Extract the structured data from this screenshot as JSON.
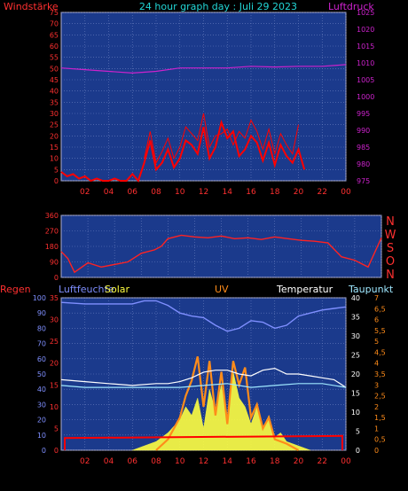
{
  "colors": {
    "background": "#000000",
    "plot_bg": "#1b3a8c",
    "grid": "#6a7fc0",
    "axis_text": "#ff3333",
    "title": "#22d6d6",
    "wind": "#ff0000",
    "pressure": "#cc22cc",
    "direction": "#ff2222",
    "humidity": "#c8e8ff",
    "uv": "#ff8c1a",
    "solar": "#ffff40",
    "temperature": "#ffffff",
    "dewpoint": "#9fe8ff",
    "rain": "#ff0000",
    "solar_line": "#7f8fff"
  },
  "chart_data": [
    {
      "id": "wind_pressure",
      "type": "line",
      "title": "24 hour graph day : Juli 29 2023",
      "ylabel_left": "Windstärke",
      "ylabel_right": "Luftdruck",
      "x_ticks": [
        "02",
        "04",
        "06",
        "08",
        "10",
        "12",
        "14",
        "16",
        "18",
        "20",
        "22",
        "00"
      ],
      "xlim": [
        0,
        24
      ],
      "left_ticks": [
        "0",
        "5",
        "10",
        "15",
        "20",
        "25",
        "30",
        "35",
        "40",
        "45",
        "50",
        "55",
        "60",
        "65",
        "70",
        "75"
      ],
      "ylim_left": [
        0,
        75
      ],
      "right_ticks": [
        "975",
        "980",
        "985",
        "990",
        "995",
        "1000",
        "1005",
        "1010",
        "1015",
        "1020",
        "1025"
      ],
      "ylim_right": [
        975,
        1025
      ],
      "series": [
        {
          "key": "wind",
          "x": [
            0.0,
            0.5,
            1.0,
            1.5,
            2.0,
            2.5,
            3.0,
            3.5,
            4.0,
            4.5,
            5.0,
            5.5,
            6.0,
            6.5,
            7.0,
            7.5,
            8.0,
            8.5,
            9.0,
            9.5,
            10.0,
            10.5,
            11.0,
            11.5,
            12.0,
            12.5,
            13.0,
            13.5,
            14.0,
            14.5,
            15.0,
            15.5,
            16.0,
            16.5,
            17.0,
            17.5,
            18.0,
            18.5,
            19.0,
            19.5,
            20.0,
            20.5
          ],
          "values": [
            4,
            2,
            3,
            1,
            2,
            0,
            1,
            0,
            0,
            1,
            0,
            0,
            3,
            0,
            8,
            18,
            5,
            8,
            14,
            6,
            10,
            18,
            16,
            12,
            24,
            10,
            15,
            26,
            19,
            22,
            11,
            14,
            20,
            17,
            9,
            17,
            7,
            16,
            11,
            8,
            14,
            5
          ]
        },
        {
          "key": "gust",
          "x": [
            7.0,
            7.5,
            8.0,
            8.5,
            9.0,
            9.5,
            10.0,
            10.5,
            11.0,
            11.5,
            12.0,
            12.5,
            13.0,
            13.5,
            14.0,
            14.5,
            15.0,
            15.5,
            16.0,
            16.5,
            17.0,
            17.5,
            18.0,
            18.5,
            19.0,
            19.5,
            20.0
          ],
          "values": [
            10,
            22,
            8,
            13,
            19,
            10,
            15,
            24,
            21,
            18,
            30,
            15,
            20,
            21,
            23,
            16,
            22,
            19,
            27,
            22,
            14,
            23,
            12,
            21,
            16,
            12,
            25
          ]
        },
        {
          "key": "pressure",
          "x": [
            0,
            2,
            4,
            6,
            8,
            10,
            12,
            14,
            16,
            18,
            20,
            22,
            24
          ],
          "values": [
            1008.5,
            1008,
            1007.5,
            1007,
            1007.5,
            1008.5,
            1008.5,
            1008.5,
            1009,
            1008.8,
            1009,
            1009,
            1009.5
          ]
        }
      ]
    },
    {
      "id": "direction",
      "type": "line",
      "x_ticks": [
        "02",
        "04",
        "06",
        "08",
        "10",
        "12",
        "14",
        "16",
        "18",
        "20",
        "22",
        "00"
      ],
      "xlim": [
        0,
        24
      ],
      "left_ticks": [
        "0",
        "90",
        "180",
        "270",
        "360"
      ],
      "ylim": [
        0,
        360
      ],
      "right_ticks": [
        "N",
        "W",
        "S",
        "O",
        "N"
      ],
      "series": [
        {
          "key": "direction",
          "x": [
            0,
            0.5,
            1.0,
            2.0,
            3.0,
            4.0,
            5.0,
            6.0,
            7.0,
            7.5,
            8.0,
            9.0,
            10.0,
            11.0,
            12.0,
            13.0,
            14.0,
            15.0,
            16.0,
            17.0,
            18.0,
            19.0,
            20.0,
            21.0,
            22.0,
            23.0,
            24.0
          ],
          "values": [
            150,
            110,
            30,
            85,
            60,
            75,
            90,
            140,
            160,
            180,
            225,
            245,
            235,
            230,
            240,
            225,
            230,
            220,
            235,
            225,
            215,
            210,
            200,
            120,
            100,
            60,
            230
          ]
        }
      ]
    },
    {
      "id": "solar_uv_temp",
      "type": "line",
      "labels_top": [
        "Regen",
        "Luftfeuchte",
        "Solar",
        "UV",
        "Temperatur",
        "Taupunkt"
      ],
      "x_ticks": [
        "02",
        "04",
        "06",
        "08",
        "10",
        "12",
        "14",
        "16",
        "18",
        "20",
        "22",
        "00"
      ],
      "xlim": [
        0,
        24
      ],
      "humidity_ticks": [
        "0",
        "10",
        "20",
        "30",
        "40",
        "50",
        "60",
        "70",
        "80",
        "90",
        "100"
      ],
      "rain_ticks": [
        "0",
        "5",
        "10",
        "15",
        "20",
        "25",
        "30",
        "35"
      ],
      "temp_ticks": [
        "0",
        "5",
        "10",
        "15",
        "20",
        "25",
        "30",
        "35",
        "40"
      ],
      "uv_ticks": [
        "0",
        "0,5",
        "1",
        "1,5",
        "2",
        "2,5",
        "3",
        "3,5",
        "4",
        "4,5",
        "5",
        "5,5",
        "6",
        "6,5",
        "7"
      ],
      "series": [
        {
          "key": "humidity",
          "x": [
            0,
            2,
            4,
            6,
            7,
            8,
            9,
            10,
            11,
            12,
            13,
            14,
            15,
            16,
            17,
            18,
            19,
            20,
            21,
            22,
            23,
            24
          ],
          "values": [
            97,
            96,
            96,
            96,
            98,
            98,
            95,
            90,
            88,
            87,
            82,
            78,
            80,
            85,
            84,
            80,
            82,
            88,
            90,
            92,
            93,
            94
          ]
        },
        {
          "key": "temperature",
          "x": [
            0,
            2,
            4,
            6,
            8,
            9,
            10,
            11,
            12,
            13,
            14,
            15,
            16,
            17,
            18,
            19,
            20,
            21,
            22,
            23,
            24
          ],
          "values": [
            18.5,
            18,
            17.5,
            17,
            17.5,
            17.5,
            18,
            19,
            20.5,
            21,
            21,
            20,
            19.5,
            21,
            21.5,
            20,
            20,
            19.5,
            19,
            18.5,
            16.5
          ]
        },
        {
          "key": "dewpoint",
          "x": [
            0,
            2,
            4,
            6,
            8,
            10,
            12,
            14,
            16,
            18,
            20,
            22,
            24
          ],
          "values": [
            17,
            16.5,
            16.5,
            16.5,
            16.5,
            16.5,
            17,
            17.5,
            16.5,
            17,
            17.5,
            17.5,
            16.5
          ]
        },
        {
          "key": "solar",
          "x": [
            6,
            7,
            8,
            9,
            10,
            10.5,
            11,
            11.5,
            12,
            12.5,
            13,
            13.5,
            14,
            14.5,
            15,
            15.5,
            16,
            16.5,
            17,
            17.5,
            18,
            18.5,
            19,
            20,
            21
          ],
          "values": [
            0,
            1,
            2,
            4,
            7,
            10,
            8,
            12,
            5,
            14,
            9,
            15,
            7,
            18,
            12,
            10,
            6,
            10,
            5,
            8,
            3,
            4,
            2,
            1,
            0
          ]
        },
        {
          "key": "uv",
          "x": [
            8,
            9,
            10,
            10.5,
            11,
            11.5,
            12,
            12.5,
            13,
            13.5,
            14,
            14.5,
            15,
            15.5,
            16,
            16.5,
            17,
            17.5,
            18,
            19,
            20
          ],
          "values": [
            0,
            0.5,
            1.5,
            2.5,
            3.2,
            4.3,
            2.0,
            4.1,
            1.6,
            3.6,
            1.2,
            4.1,
            3.0,
            3.8,
            1.5,
            2.1,
            1.0,
            1.5,
            0.5,
            0.3,
            0
          ]
        },
        {
          "key": "rain",
          "x": [
            0,
            24
          ],
          "values": [
            2.8,
            3.3
          ]
        },
        {
          "key": "solar_line",
          "x": [
            0,
            4,
            6,
            8,
            10,
            12,
            14,
            16,
            18,
            20,
            24
          ],
          "values": [
            35,
            35,
            35,
            35,
            33,
            30,
            28,
            30,
            31,
            33,
            36
          ]
        }
      ]
    }
  ]
}
